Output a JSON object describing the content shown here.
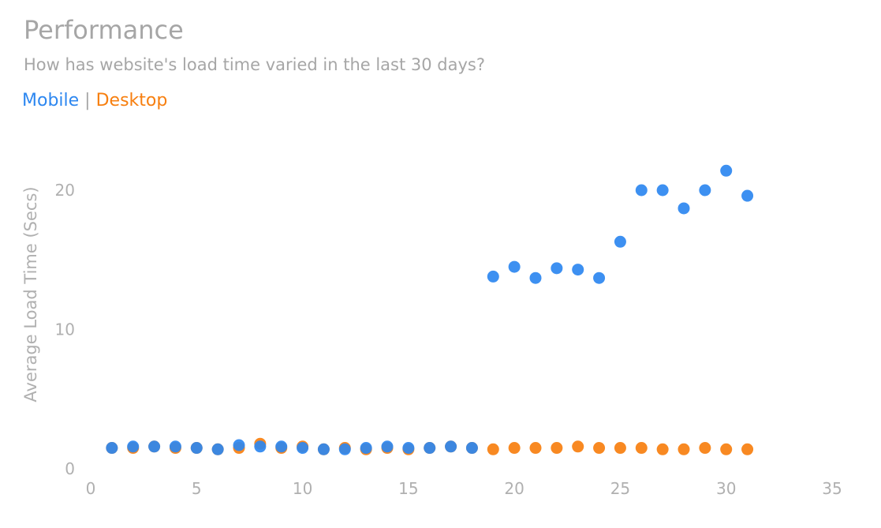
{
  "header": {
    "title": "Performance",
    "subtitle": "How has website's load time varied in the last 30 days?"
  },
  "legend": {
    "separator": "|"
  },
  "colors": {
    "mobile": "#2d87f0",
    "desktop": "#f77f0f",
    "text": "#a6a6a6"
  },
  "chart_data": {
    "type": "scatter",
    "ylabel": "Average Load Time (Secs)",
    "xlabel": "",
    "xlim": [
      0,
      35
    ],
    "ylim": [
      0,
      20
    ],
    "x_ticks": [
      0,
      5,
      10,
      15,
      20,
      25,
      30,
      35
    ],
    "y_ticks": [
      0,
      10,
      20
    ],
    "grid": false,
    "legend_position": "top-left",
    "series": [
      {
        "name": "Desktop",
        "x": [
          1,
          2,
          3,
          4,
          5,
          6,
          7,
          8,
          9,
          10,
          11,
          12,
          13,
          14,
          15,
          16,
          17,
          18,
          19,
          20,
          21,
          22,
          23,
          24,
          25,
          26,
          27,
          28,
          29,
          30,
          31
        ],
        "y": [
          1.5,
          1.5,
          1.6,
          1.5,
          1.5,
          1.4,
          1.5,
          1.8,
          1.5,
          1.6,
          1.4,
          1.5,
          1.4,
          1.5,
          1.4,
          1.5,
          1.6,
          1.5,
          1.4,
          1.5,
          1.5,
          1.5,
          1.6,
          1.5,
          1.5,
          1.5,
          1.4,
          1.4,
          1.5,
          1.4,
          1.4
        ]
      },
      {
        "name": "Mobile",
        "x": [
          1,
          2,
          3,
          4,
          5,
          6,
          7,
          8,
          9,
          10,
          11,
          12,
          13,
          14,
          15,
          16,
          17,
          18,
          19,
          20,
          21,
          22,
          23,
          24,
          25,
          26,
          27,
          28,
          29,
          30,
          31
        ],
        "y": [
          1.5,
          1.6,
          1.6,
          1.6,
          1.5,
          1.4,
          1.7,
          1.6,
          1.6,
          1.5,
          1.4,
          1.4,
          1.5,
          1.6,
          1.5,
          1.5,
          1.6,
          1.5,
          13.8,
          14.5,
          13.7,
          14.4,
          14.3,
          13.7,
          16.3,
          20.0,
          20.0,
          18.7,
          20.0,
          21.4,
          19.6
        ]
      }
    ]
  }
}
